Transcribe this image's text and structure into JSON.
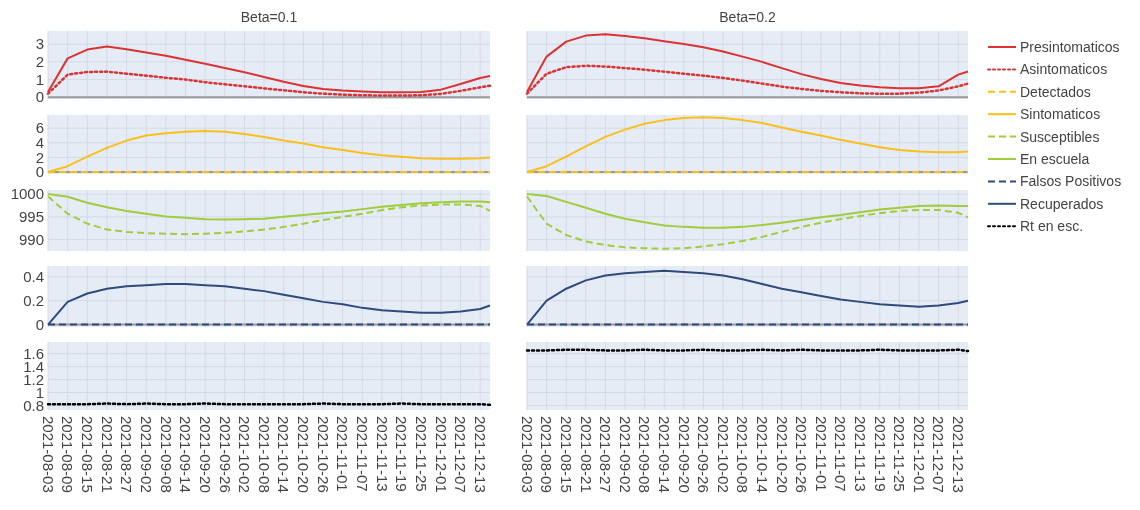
{
  "chart_data": [
    {
      "type": "line",
      "title": "Beta=0.1",
      "legend": "right",
      "grid": true,
      "tick_labels": "y",
      "x": [
        "2021-08-03",
        "2021-08-09",
        "2021-08-15",
        "2021-08-21",
        "2021-08-27",
        "2021-09-02",
        "2021-09-08",
        "2021-09-14",
        "2021-09-20",
        "2021-09-26",
        "2021-10-02",
        "2021-10-08",
        "2021-10-14",
        "2021-10-20",
        "2021-10-26",
        "2021-11-01",
        "2021-11-07",
        "2021-11-13",
        "2021-11-19",
        "2021-11-25",
        "2021-12-01",
        "2021-12-07",
        "2021-12-13",
        "2021-12-16"
      ],
      "xlim": [
        "2021-08-03",
        "2021-12-16"
      ],
      "xticks": [
        "2021-08-03",
        "2021-08-09",
        "2021-08-15",
        "2021-08-21",
        "2021-08-27",
        "2021-09-02",
        "2021-09-08",
        "2021-09-14",
        "2021-09-20",
        "2021-09-26",
        "2021-10-02",
        "2021-10-08",
        "2021-10-14",
        "2021-10-20",
        "2021-10-26",
        "2021-11-01",
        "2021-11-07",
        "2021-11-13",
        "2021-11-19",
        "2021-11-25",
        "2021-12-01",
        "2021-12-07",
        "2021-12-13"
      ],
      "ylim": [
        -0.1,
        3.75
      ],
      "yticks": [
        0,
        1,
        2,
        3
      ],
      "series": [
        {
          "name": "Presintomaticos",
          "color": "#dc3232",
          "line_style": "solid",
          "values": [
            0.3,
            2.2,
            2.7,
            2.87,
            2.72,
            2.53,
            2.35,
            2.12,
            1.9,
            1.65,
            1.41,
            1.15,
            0.88,
            0.64,
            0.47,
            0.38,
            0.32,
            0.28,
            0.28,
            0.3,
            0.43,
            0.75,
            1.09,
            1.2
          ]
        },
        {
          "name": "Asintomaticos",
          "color": "#dc3232",
          "line_style": "dotted",
          "values": [
            0.2,
            1.28,
            1.43,
            1.45,
            1.33,
            1.22,
            1.1,
            1.0,
            0.85,
            0.73,
            0.62,
            0.5,
            0.39,
            0.28,
            0.2,
            0.15,
            0.11,
            0.1,
            0.1,
            0.11,
            0.19,
            0.36,
            0.56,
            0.65
          ]
        }
      ]
    },
    {
      "type": "line",
      "title": "Beta=0.2",
      "grid": true,
      "tick_labels": false,
      "x": [
        "2021-08-03",
        "2021-08-09",
        "2021-08-15",
        "2021-08-21",
        "2021-08-27",
        "2021-09-02",
        "2021-09-08",
        "2021-09-14",
        "2021-09-20",
        "2021-09-26",
        "2021-10-02",
        "2021-10-08",
        "2021-10-14",
        "2021-10-20",
        "2021-10-26",
        "2021-11-01",
        "2021-11-07",
        "2021-11-13",
        "2021-11-19",
        "2021-11-25",
        "2021-12-01",
        "2021-12-07",
        "2021-12-13",
        "2021-12-16"
      ],
      "xlim": [
        "2021-08-03",
        "2021-12-16"
      ],
      "xticks": [
        "2021-08-03",
        "2021-08-09",
        "2021-08-15",
        "2021-08-21",
        "2021-08-27",
        "2021-09-02",
        "2021-09-08",
        "2021-09-14",
        "2021-09-20",
        "2021-09-26",
        "2021-10-02",
        "2021-10-08",
        "2021-10-14",
        "2021-10-20",
        "2021-10-26",
        "2021-11-01",
        "2021-11-07",
        "2021-11-13",
        "2021-11-19",
        "2021-11-25",
        "2021-12-01",
        "2021-12-07",
        "2021-12-13"
      ],
      "ylim": [
        -0.1,
        3.75
      ],
      "yticks": [
        0,
        1,
        2,
        3
      ],
      "series": [
        {
          "color": "#dc3232",
          "line_style": "solid",
          "values": [
            0.3,
            2.3,
            3.15,
            3.49,
            3.56,
            3.47,
            3.34,
            3.17,
            3.02,
            2.83,
            2.59,
            2.3,
            2.0,
            1.65,
            1.31,
            1.03,
            0.81,
            0.66,
            0.56,
            0.51,
            0.51,
            0.62,
            1.28,
            1.46
          ]
        },
        {
          "color": "#dc3232",
          "line_style": "dotted",
          "values": [
            0.2,
            1.33,
            1.7,
            1.78,
            1.74,
            1.65,
            1.56,
            1.45,
            1.33,
            1.22,
            1.09,
            0.94,
            0.77,
            0.6,
            0.47,
            0.36,
            0.28,
            0.22,
            0.2,
            0.2,
            0.26,
            0.38,
            0.62,
            0.77
          ]
        }
      ]
    },
    {
      "type": "line",
      "legend": "right",
      "grid": true,
      "tick_labels": "y",
      "x": [
        "2021-08-03",
        "2021-08-09",
        "2021-08-15",
        "2021-08-21",
        "2021-08-27",
        "2021-09-02",
        "2021-09-08",
        "2021-09-14",
        "2021-09-20",
        "2021-09-26",
        "2021-10-02",
        "2021-10-08",
        "2021-10-14",
        "2021-10-20",
        "2021-10-26",
        "2021-11-01",
        "2021-11-07",
        "2021-11-13",
        "2021-11-19",
        "2021-11-25",
        "2021-12-01",
        "2021-12-07",
        "2021-12-13",
        "2021-12-16"
      ],
      "xlim": [
        "2021-08-03",
        "2021-12-16"
      ],
      "xticks": [
        "2021-08-03",
        "2021-08-09",
        "2021-08-15",
        "2021-08-21",
        "2021-08-27",
        "2021-09-02",
        "2021-09-08",
        "2021-09-14",
        "2021-09-20",
        "2021-09-26",
        "2021-10-02",
        "2021-10-08",
        "2021-10-14",
        "2021-10-20",
        "2021-10-26",
        "2021-11-01",
        "2021-11-07",
        "2021-11-13",
        "2021-11-19",
        "2021-11-25",
        "2021-12-01",
        "2021-12-07",
        "2021-12-13"
      ],
      "ylim": [
        -0.27,
        7.8
      ],
      "yticks": [
        0,
        2,
        4,
        6
      ],
      "series": [
        {
          "name": "Detectados",
          "color": "#fbbf1a",
          "line_style": "dashed",
          "values": [
            0,
            0,
            0,
            0,
            0,
            0,
            0,
            0,
            0,
            0,
            0,
            0,
            0,
            0,
            0,
            0,
            0,
            0,
            0,
            0,
            0,
            0,
            0,
            0
          ]
        },
        {
          "name": "Sintomaticos",
          "color": "#fbbf1a",
          "line_style": "solid",
          "values": [
            0,
            0.8,
            2.1,
            3.3,
            4.3,
            5.0,
            5.3,
            5.5,
            5.6,
            5.5,
            5.2,
            4.8,
            4.3,
            3.9,
            3.4,
            3.0,
            2.6,
            2.3,
            2.1,
            1.9,
            1.8,
            1.8,
            1.9,
            2.0
          ]
        }
      ]
    },
    {
      "type": "line",
      "grid": true,
      "tick_labels": false,
      "x": [
        "2021-08-03",
        "2021-08-09",
        "2021-08-15",
        "2021-08-21",
        "2021-08-27",
        "2021-09-02",
        "2021-09-08",
        "2021-09-14",
        "2021-09-20",
        "2021-09-26",
        "2021-10-02",
        "2021-10-08",
        "2021-10-14",
        "2021-10-20",
        "2021-10-26",
        "2021-11-01",
        "2021-11-07",
        "2021-11-13",
        "2021-11-19",
        "2021-11-25",
        "2021-12-01",
        "2021-12-07",
        "2021-12-13",
        "2021-12-16"
      ],
      "xlim": [
        "2021-08-03",
        "2021-12-16"
      ],
      "xticks": [
        "2021-08-03",
        "2021-08-09",
        "2021-08-15",
        "2021-08-21",
        "2021-08-27",
        "2021-09-02",
        "2021-09-08",
        "2021-09-14",
        "2021-09-20",
        "2021-09-26",
        "2021-10-02",
        "2021-10-08",
        "2021-10-14",
        "2021-10-20",
        "2021-10-26",
        "2021-11-01",
        "2021-11-07",
        "2021-11-13",
        "2021-11-19",
        "2021-11-25",
        "2021-12-01",
        "2021-12-07",
        "2021-12-13"
      ],
      "ylim": [
        -0.27,
        7.8
      ],
      "yticks": [
        0,
        2,
        4,
        6
      ],
      "series": [
        {
          "color": "#fbbf1a",
          "line_style": "dashed",
          "values": [
            0,
            0,
            0,
            0,
            0,
            0,
            0,
            0,
            0,
            0,
            0,
            0,
            0,
            0,
            0,
            0,
            0,
            0,
            0,
            0,
            0,
            0,
            0,
            0
          ]
        },
        {
          "color": "#fbbf1a",
          "line_style": "solid",
          "values": [
            0,
            0.8,
            2.1,
            3.5,
            4.8,
            5.8,
            6.6,
            7.1,
            7.4,
            7.5,
            7.4,
            7.1,
            6.7,
            6.1,
            5.5,
            5.0,
            4.4,
            3.9,
            3.4,
            3.0,
            2.8,
            2.7,
            2.7,
            2.8
          ]
        }
      ]
    },
    {
      "type": "line",
      "legend": "right",
      "grid": true,
      "tick_labels": "y",
      "x": [
        "2021-08-03",
        "2021-08-09",
        "2021-08-15",
        "2021-08-21",
        "2021-08-27",
        "2021-09-02",
        "2021-09-08",
        "2021-09-14",
        "2021-09-20",
        "2021-09-26",
        "2021-10-02",
        "2021-10-08",
        "2021-10-14",
        "2021-10-20",
        "2021-10-26",
        "2021-11-01",
        "2021-11-07",
        "2021-11-13",
        "2021-11-19",
        "2021-11-25",
        "2021-12-01",
        "2021-12-07",
        "2021-12-13",
        "2021-12-16"
      ],
      "xlim": [
        "2021-08-03",
        "2021-12-16"
      ],
      "xticks": [
        "2021-08-03",
        "2021-08-09",
        "2021-08-15",
        "2021-08-21",
        "2021-08-27",
        "2021-09-02",
        "2021-09-08",
        "2021-09-14",
        "2021-09-20",
        "2021-09-26",
        "2021-10-02",
        "2021-10-08",
        "2021-10-14",
        "2021-10-20",
        "2021-10-26",
        "2021-11-01",
        "2021-11-07",
        "2021-11-13",
        "2021-11-19",
        "2021-11-25",
        "2021-12-01",
        "2021-12-07",
        "2021-12-13"
      ],
      "ylim": [
        987.5,
        1000.9
      ],
      "yticks": [
        990,
        995,
        1000
      ],
      "series": [
        {
          "name": "Susceptibles",
          "color": "#9fcd3c",
          "line_style": "dashed",
          "values": [
            999.5,
            995.7,
            993.5,
            992.2,
            991.7,
            991.4,
            991.3,
            991.2,
            991.3,
            991.5,
            991.8,
            992.2,
            992.8,
            993.5,
            994.3,
            995.0,
            995.7,
            996.5,
            997.1,
            997.5,
            997.7,
            997.7,
            997.4,
            996.3
          ]
        },
        {
          "name": "En escuela",
          "color": "#9fcd3c",
          "line_style": "solid",
          "values": [
            1000,
            999.4,
            998.1,
            997.1,
            996.3,
            995.7,
            995.1,
            994.8,
            994.5,
            994.4,
            994.5,
            994.6,
            995.0,
            995.4,
            995.8,
            996.2,
            996.7,
            997.2,
            997.6,
            998.0,
            998.2,
            998.4,
            998.4,
            998.2
          ]
        }
      ]
    },
    {
      "type": "line",
      "grid": true,
      "tick_labels": false,
      "x": [
        "2021-08-03",
        "2021-08-09",
        "2021-08-15",
        "2021-08-21",
        "2021-08-27",
        "2021-09-02",
        "2021-09-08",
        "2021-09-14",
        "2021-09-20",
        "2021-09-26",
        "2021-10-02",
        "2021-10-08",
        "2021-10-14",
        "2021-10-20",
        "2021-10-26",
        "2021-11-01",
        "2021-11-07",
        "2021-11-13",
        "2021-11-19",
        "2021-11-25",
        "2021-12-01",
        "2021-12-07",
        "2021-12-13",
        "2021-12-16"
      ],
      "xlim": [
        "2021-08-03",
        "2021-12-16"
      ],
      "xticks": [
        "2021-08-03",
        "2021-08-09",
        "2021-08-15",
        "2021-08-21",
        "2021-08-27",
        "2021-09-02",
        "2021-09-08",
        "2021-09-14",
        "2021-09-20",
        "2021-09-26",
        "2021-10-02",
        "2021-10-08",
        "2021-10-14",
        "2021-10-20",
        "2021-10-26",
        "2021-11-01",
        "2021-11-07",
        "2021-11-13",
        "2021-11-19",
        "2021-11-25",
        "2021-12-01",
        "2021-12-07",
        "2021-12-13"
      ],
      "ylim": [
        987.5,
        1000.9
      ],
      "yticks": [
        990,
        995,
        1000
      ],
      "series": [
        {
          "color": "#9fcd3c",
          "line_style": "dashed",
          "values": [
            999.5,
            993.5,
            991.0,
            989.6,
            988.8,
            988.3,
            988.1,
            988.0,
            988.1,
            988.5,
            989.0,
            989.7,
            990.6,
            991.7,
            992.8,
            993.7,
            994.5,
            995.2,
            995.8,
            996.3,
            996.5,
            996.5,
            995.9,
            994.9
          ]
        },
        {
          "color": "#9fcd3c",
          "line_style": "solid",
          "values": [
            1000,
            999.6,
            998.3,
            997.0,
            995.7,
            994.6,
            993.8,
            993.1,
            992.8,
            992.6,
            992.6,
            992.8,
            993.2,
            993.7,
            994.3,
            994.9,
            995.4,
            996.0,
            996.6,
            997.0,
            997.4,
            997.5,
            997.4,
            997.4
          ]
        }
      ]
    },
    {
      "type": "line",
      "legend": "right",
      "grid": true,
      "tick_labels": "y",
      "x": [
        "2021-08-03",
        "2021-08-09",
        "2021-08-15",
        "2021-08-21",
        "2021-08-27",
        "2021-09-02",
        "2021-09-08",
        "2021-09-14",
        "2021-09-20",
        "2021-09-26",
        "2021-10-02",
        "2021-10-08",
        "2021-10-14",
        "2021-10-20",
        "2021-10-26",
        "2021-11-01",
        "2021-11-07",
        "2021-11-13",
        "2021-11-19",
        "2021-11-25",
        "2021-12-01",
        "2021-12-07",
        "2021-12-13",
        "2021-12-16"
      ],
      "xlim": [
        "2021-08-03",
        "2021-12-16"
      ],
      "xticks": [
        "2021-08-03",
        "2021-08-09",
        "2021-08-15",
        "2021-08-21",
        "2021-08-27",
        "2021-09-02",
        "2021-09-08",
        "2021-09-14",
        "2021-09-20",
        "2021-09-26",
        "2021-10-02",
        "2021-10-08",
        "2021-10-14",
        "2021-10-20",
        "2021-10-26",
        "2021-11-01",
        "2021-11-07",
        "2021-11-13",
        "2021-11-19",
        "2021-11-25",
        "2021-12-01",
        "2021-12-07",
        "2021-12-13"
      ],
      "ylim": [
        -0.02,
        0.49
      ],
      "yticks": [
        0,
        0.2,
        0.4
      ],
      "series": [
        {
          "name": "Falsos Positivos",
          "color": "#2f4b7c",
          "line_style": "dashed",
          "values": [
            0,
            0,
            0,
            0,
            0,
            0,
            0,
            0,
            0,
            0,
            0,
            0,
            0,
            0,
            0,
            0,
            0,
            0,
            0,
            0,
            0,
            0,
            0,
            0
          ]
        },
        {
          "name": "Recuperados",
          "color": "#2f4b7c",
          "line_style": "solid",
          "values": [
            0,
            0.19,
            0.26,
            0.3,
            0.32,
            0.33,
            0.34,
            0.34,
            0.33,
            0.32,
            0.3,
            0.28,
            0.25,
            0.22,
            0.19,
            0.17,
            0.14,
            0.12,
            0.11,
            0.1,
            0.1,
            0.11,
            0.13,
            0.16
          ]
        }
      ]
    },
    {
      "type": "line",
      "grid": true,
      "tick_labels": false,
      "x": [
        "2021-08-03",
        "2021-08-09",
        "2021-08-15",
        "2021-08-21",
        "2021-08-27",
        "2021-09-02",
        "2021-09-08",
        "2021-09-14",
        "2021-09-20",
        "2021-09-26",
        "2021-10-02",
        "2021-10-08",
        "2021-10-14",
        "2021-10-20",
        "2021-10-26",
        "2021-11-01",
        "2021-11-07",
        "2021-11-13",
        "2021-11-19",
        "2021-11-25",
        "2021-12-01",
        "2021-12-07",
        "2021-12-13",
        "2021-12-16"
      ],
      "xlim": [
        "2021-08-03",
        "2021-12-16"
      ],
      "xticks": [
        "2021-08-03",
        "2021-08-09",
        "2021-08-15",
        "2021-08-21",
        "2021-08-27",
        "2021-09-02",
        "2021-09-08",
        "2021-09-14",
        "2021-09-20",
        "2021-09-26",
        "2021-10-02",
        "2021-10-08",
        "2021-10-14",
        "2021-10-20",
        "2021-10-26",
        "2021-11-01",
        "2021-11-07",
        "2021-11-13",
        "2021-11-19",
        "2021-11-25",
        "2021-12-01",
        "2021-12-07",
        "2021-12-13"
      ],
      "ylim": [
        -0.02,
        0.49
      ],
      "yticks": [
        0,
        0.2,
        0.4
      ],
      "series": [
        {
          "color": "#2f4b7c",
          "line_style": "dashed",
          "values": [
            0,
            0,
            0,
            0,
            0,
            0,
            0,
            0,
            0,
            0,
            0,
            0,
            0,
            0,
            0,
            0,
            0,
            0,
            0,
            0,
            0,
            0,
            0,
            0
          ]
        },
        {
          "color": "#2f4b7c",
          "line_style": "solid",
          "values": [
            0,
            0.2,
            0.3,
            0.37,
            0.41,
            0.43,
            0.44,
            0.45,
            0.44,
            0.43,
            0.41,
            0.38,
            0.34,
            0.3,
            0.27,
            0.24,
            0.21,
            0.19,
            0.17,
            0.16,
            0.15,
            0.16,
            0.18,
            0.2
          ]
        }
      ]
    },
    {
      "type": "line",
      "legend": "right",
      "grid": true,
      "x": [
        "2021-08-03",
        "2021-08-09",
        "2021-08-15",
        "2021-08-21",
        "2021-08-27",
        "2021-09-02",
        "2021-09-08",
        "2021-09-14",
        "2021-09-20",
        "2021-09-26",
        "2021-10-02",
        "2021-10-08",
        "2021-10-14",
        "2021-10-20",
        "2021-10-26",
        "2021-11-01",
        "2021-11-07",
        "2021-11-13",
        "2021-11-19",
        "2021-11-25",
        "2021-12-01",
        "2021-12-07",
        "2021-12-13",
        "2021-12-16"
      ],
      "xlim": [
        "2021-08-03",
        "2021-12-16"
      ],
      "xticks": [
        "2021-08-03",
        "2021-08-09",
        "2021-08-15",
        "2021-08-21",
        "2021-08-27",
        "2021-09-02",
        "2021-09-08",
        "2021-09-14",
        "2021-09-20",
        "2021-09-26",
        "2021-10-02",
        "2021-10-08",
        "2021-10-14",
        "2021-10-20",
        "2021-10-26",
        "2021-11-01",
        "2021-11-07",
        "2021-11-13",
        "2021-11-19",
        "2021-11-25",
        "2021-12-01",
        "2021-12-07",
        "2021-12-13"
      ],
      "ylim": [
        0.73,
        1.78
      ],
      "yticks": [
        0.8,
        1,
        1.2,
        1.4,
        1.6
      ],
      "series": [
        {
          "name": "Rt en esc.",
          "color": "#000000",
          "line_style": "dotted",
          "values": [
            0.82,
            0.82,
            0.82,
            0.83,
            0.82,
            0.83,
            0.82,
            0.82,
            0.83,
            0.82,
            0.82,
            0.82,
            0.82,
            0.82,
            0.83,
            0.82,
            0.82,
            0.82,
            0.83,
            0.82,
            0.82,
            0.82,
            0.82,
            0.81
          ]
        }
      ]
    },
    {
      "type": "line",
      "grid": true,
      "tick_labels": "x",
      "x": [
        "2021-08-03",
        "2021-08-09",
        "2021-08-15",
        "2021-08-21",
        "2021-08-27",
        "2021-09-02",
        "2021-09-08",
        "2021-09-14",
        "2021-09-20",
        "2021-09-26",
        "2021-10-02",
        "2021-10-08",
        "2021-10-14",
        "2021-10-20",
        "2021-10-26",
        "2021-11-01",
        "2021-11-07",
        "2021-11-13",
        "2021-11-19",
        "2021-11-25",
        "2021-12-01",
        "2021-12-07",
        "2021-12-13",
        "2021-12-16"
      ],
      "xlim": [
        "2021-08-03",
        "2021-12-16"
      ],
      "xticks": [
        "2021-08-03",
        "2021-08-09",
        "2021-08-15",
        "2021-08-21",
        "2021-08-27",
        "2021-09-02",
        "2021-09-08",
        "2021-09-14",
        "2021-09-20",
        "2021-09-26",
        "2021-10-02",
        "2021-10-08",
        "2021-10-14",
        "2021-10-20",
        "2021-10-26",
        "2021-11-01",
        "2021-11-07",
        "2021-11-13",
        "2021-11-19",
        "2021-11-25",
        "2021-12-01",
        "2021-12-07",
        "2021-12-13"
      ],
      "ylim": [
        0.73,
        1.78
      ],
      "yticks": [
        0.8,
        1,
        1.2,
        1.4,
        1.6
      ],
      "series": [
        {
          "color": "#000000",
          "line_style": "dotted",
          "values": [
            1.65,
            1.65,
            1.66,
            1.66,
            1.65,
            1.65,
            1.66,
            1.65,
            1.65,
            1.66,
            1.65,
            1.65,
            1.66,
            1.65,
            1.66,
            1.65,
            1.65,
            1.65,
            1.66,
            1.65,
            1.65,
            1.65,
            1.66,
            1.64
          ]
        }
      ]
    }
  ]
}
